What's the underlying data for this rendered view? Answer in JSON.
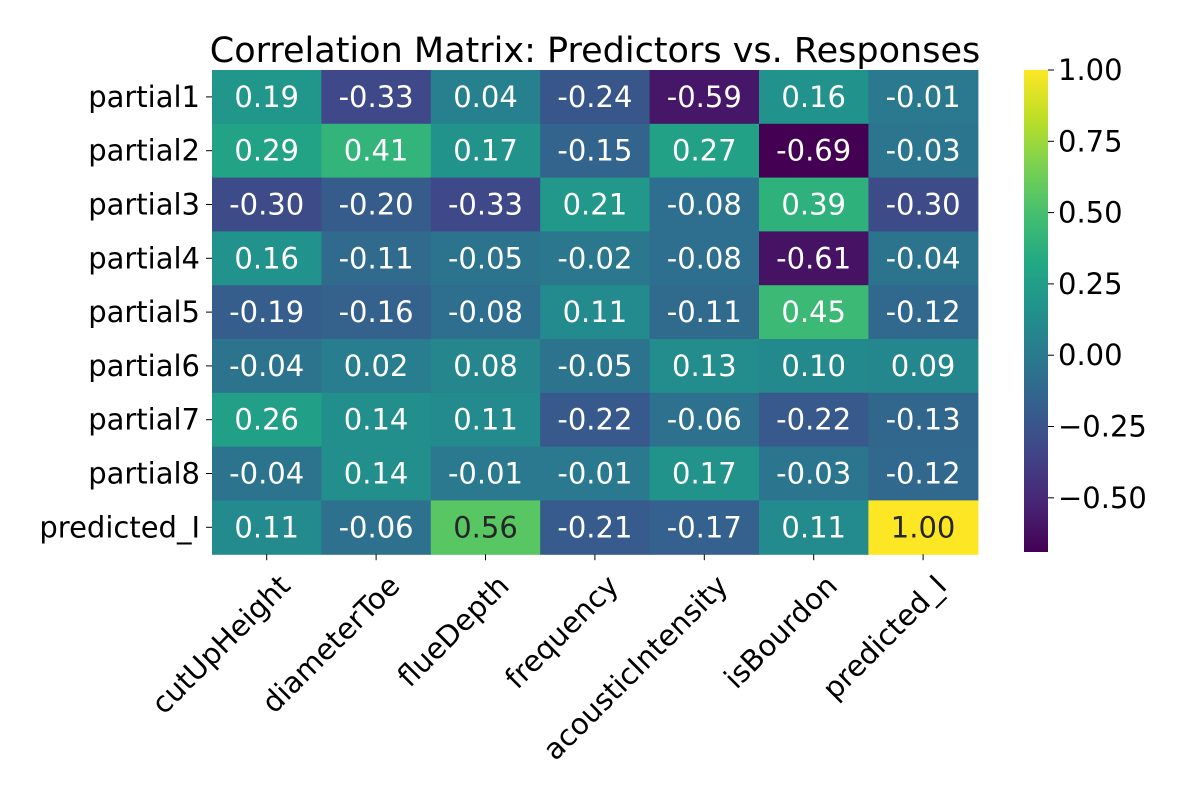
{
  "chart_data": {
    "type": "heatmap",
    "title": "Correlation Matrix: Predictors vs. Responses",
    "rows": [
      "partial1",
      "partial2",
      "partial3",
      "partial4",
      "partial5",
      "partial6",
      "partial7",
      "partial8",
      "predicted_I"
    ],
    "columns": [
      "cutUpHeight",
      "diameterToe",
      "flueDepth",
      "frequency",
      "acousticIntensity",
      "isBourdon",
      "predicted_I"
    ],
    "values": [
      [
        0.19,
        -0.33,
        0.04,
        -0.24,
        -0.59,
        0.16,
        -0.01
      ],
      [
        0.29,
        0.41,
        0.17,
        -0.15,
        0.27,
        -0.69,
        -0.03
      ],
      [
        -0.3,
        -0.2,
        -0.33,
        0.21,
        -0.08,
        0.39,
        -0.3
      ],
      [
        0.16,
        -0.11,
        -0.05,
        -0.02,
        -0.08,
        -0.61,
        -0.04
      ],
      [
        -0.19,
        -0.16,
        -0.08,
        0.11,
        -0.11,
        0.45,
        -0.12
      ],
      [
        -0.04,
        0.02,
        0.08,
        -0.05,
        0.13,
        0.1,
        0.09
      ],
      [
        0.26,
        0.14,
        0.11,
        -0.22,
        -0.06,
        -0.22,
        -0.13
      ],
      [
        -0.04,
        0.14,
        -0.01,
        -0.01,
        0.17,
        -0.03,
        -0.12
      ],
      [
        0.11,
        -0.06,
        0.56,
        -0.21,
        -0.17,
        0.11,
        1.0
      ]
    ],
    "value_format": "2 decimals",
    "colormap": "viridis",
    "color_range": [
      -0.69,
      1.0
    ],
    "colorbar_ticks": [
      "1.00",
      "0.75",
      "0.50",
      "0.25",
      "0.00",
      "−0.25",
      "−0.50"
    ],
    "colorbar_tick_values": [
      1.0,
      0.75,
      0.5,
      0.25,
      0.0,
      -0.25,
      -0.5
    ],
    "xlabel": "",
    "ylabel": ""
  }
}
